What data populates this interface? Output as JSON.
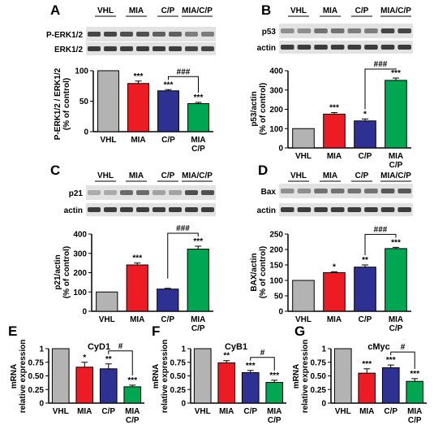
{
  "colors": {
    "vhl": "#b3b3b3",
    "mia": "#ed1c24",
    "cp": "#2e3192",
    "combo": "#00a651",
    "axis": "#000000",
    "blot_bg": "#e2e2e2",
    "band": "#2a2a2a"
  },
  "chart_data": [
    {
      "panel": "A",
      "type": "bar",
      "blots": [
        {
          "label": "P-ERK1/2",
          "intensity": [
            0.85,
            0.85,
            0.8,
            0.8,
            0.7,
            0.7,
            0.55,
            0.55
          ]
        },
        {
          "label": "ERK1/2",
          "intensity": [
            0.9,
            0.9,
            0.9,
            0.9,
            0.9,
            0.9,
            0.85,
            0.85
          ]
        }
      ],
      "lane_groups": [
        "VHL",
        "MIA",
        "C/P",
        "MIA/C/P"
      ],
      "categories": [
        "VHL",
        "MIA",
        "C/P",
        "MIA\nC/P"
      ],
      "values": [
        100,
        79,
        67,
        46
      ],
      "errors": [
        0,
        4,
        2,
        2
      ],
      "stars": [
        "",
        "***",
        "***",
        "***"
      ],
      "bracket": {
        "from": 2,
        "to": 3,
        "label": "###"
      },
      "ylabel": [
        "P-ERK1/2 / ERK1/2",
        "(% of control)"
      ],
      "ylim": [
        0,
        100
      ],
      "yticks": [
        0,
        50,
        100
      ]
    },
    {
      "panel": "B",
      "type": "bar",
      "blots": [
        {
          "label": "p53",
          "intensity": [
            0.45,
            0.45,
            0.6,
            0.6,
            0.55,
            0.55,
            0.85,
            0.85
          ]
        },
        {
          "label": "actin",
          "intensity": [
            0.9,
            0.9,
            0.9,
            0.9,
            0.9,
            0.9,
            0.9,
            0.9
          ]
        }
      ],
      "lane_groups": [
        "VHL",
        "MIA",
        "C/P",
        "MIA/C/P"
      ],
      "categories": [
        "VHL",
        "MIA",
        "C/P",
        "MIA\nC/P"
      ],
      "values": [
        100,
        175,
        140,
        350
      ],
      "errors": [
        0,
        8,
        10,
        12
      ],
      "stars": [
        "",
        "***",
        "*",
        "***"
      ],
      "bracket": {
        "from": 2,
        "to": 3,
        "label": "###"
      },
      "ylabel": [
        "p53/actin",
        "(% of control)"
      ],
      "ylim": [
        0,
        400
      ],
      "yticks": [
        0,
        100,
        200,
        300,
        400
      ]
    },
    {
      "panel": "C",
      "type": "bar",
      "blots": [
        {
          "label": "p21",
          "intensity": [
            0.3,
            0.3,
            0.65,
            0.65,
            0.35,
            0.35,
            0.8,
            0.8
          ]
        },
        {
          "label": "actin",
          "intensity": [
            0.9,
            0.9,
            0.9,
            0.9,
            0.9,
            0.9,
            0.9,
            0.9
          ]
        }
      ],
      "lane_groups": [
        "VHL",
        "MIA",
        "C/P",
        "MIA/C/P"
      ],
      "categories": [
        "VHL",
        "MIA",
        "C/P",
        "MIA\nC/P"
      ],
      "values": [
        100,
        240,
        115,
        322
      ],
      "errors": [
        0,
        10,
        4,
        15
      ],
      "stars": [
        "",
        "***",
        "",
        "***"
      ],
      "bracket": {
        "from": 2,
        "to": 3,
        "label": "###"
      },
      "ylabel": [
        "p21/actin",
        "(% of control)"
      ],
      "ylim": [
        0,
        400
      ],
      "yticks": [
        0,
        100,
        200,
        300,
        400
      ]
    },
    {
      "panel": "D",
      "type": "bar",
      "blots": [
        {
          "label": "Bax",
          "intensity": [
            0.45,
            0.45,
            0.6,
            0.6,
            0.6,
            0.6,
            0.75,
            0.75
          ]
        },
        {
          "label": "actin",
          "intensity": [
            0.9,
            0.9,
            0.9,
            0.9,
            0.9,
            0.9,
            0.9,
            0.9
          ]
        }
      ],
      "lane_groups": [
        "VHL",
        "MIA",
        "C/P",
        "MIA/C/P"
      ],
      "categories": [
        "VHL",
        "MIA",
        "C/P",
        "MIA\nC/P"
      ],
      "values": [
        100,
        125,
        143,
        203
      ],
      "errors": [
        0,
        3,
        7,
        4
      ],
      "stars": [
        "",
        "*",
        "**",
        "***"
      ],
      "bracket": {
        "from": 2,
        "to": 3,
        "label": "###"
      },
      "ylabel": [
        "BAX/actin",
        "(% of control)"
      ],
      "ylim": [
        0,
        250
      ],
      "yticks": [
        0,
        50,
        100,
        150,
        200,
        250
      ]
    },
    {
      "panel": "E",
      "type": "bar",
      "title": "CyD1",
      "categories": [
        "VHL",
        "MIA",
        "C/P",
        "MIA\nC/P"
      ],
      "values": [
        1,
        0.66,
        0.63,
        0.3
      ],
      "errors": [
        0,
        0.09,
        0.09,
        0.03
      ],
      "stars": [
        "",
        "*",
        "**",
        "***"
      ],
      "bracket": {
        "from": 2,
        "to": 3,
        "label": "#"
      },
      "ylabel": [
        "mRNA",
        "relative expression"
      ],
      "ylim": [
        0,
        1
      ],
      "yticks": [
        0,
        0.25,
        0.5,
        0.75,
        1
      ],
      "ytick_labels": [
        "0",
        "0.25",
        "0.50",
        "0.75",
        "1"
      ]
    },
    {
      "panel": "F",
      "type": "bar",
      "title": "CyB1",
      "categories": [
        "VHL",
        "MIA",
        "C/P",
        "MIA\nC/P"
      ],
      "values": [
        1,
        0.74,
        0.56,
        0.38
      ],
      "errors": [
        0,
        0.04,
        0.04,
        0.04
      ],
      "stars": [
        "",
        "**",
        "***",
        "***"
      ],
      "bracket": {
        "from": 2,
        "to": 3,
        "label": "#"
      },
      "ylabel": [
        "mRNA",
        "relative expression"
      ],
      "ylim": [
        0,
        1
      ],
      "yticks": [
        0,
        0.25,
        0.5,
        0.75,
        1
      ],
      "ytick_labels": [
        "0",
        "0.25",
        "0.50",
        "0.75",
        "1"
      ]
    },
    {
      "panel": "G",
      "type": "bar",
      "title": "cMyc",
      "categories": [
        "VHL",
        "MIA",
        "C/P",
        "MIA\nC/P"
      ],
      "values": [
        1,
        0.55,
        0.65,
        0.4
      ],
      "errors": [
        0,
        0.08,
        0.05,
        0.05
      ],
      "stars": [
        "",
        "***",
        "***",
        "***"
      ],
      "bracket": {
        "from": 2,
        "to": 3,
        "label": "#"
      },
      "ylabel": [
        "mRNA",
        "relative expression"
      ],
      "ylim": [
        0,
        1
      ],
      "yticks": [
        0,
        0.25,
        0.5,
        0.75,
        1
      ],
      "ytick_labels": [
        "0",
        "0.25",
        "0.50",
        "0.75",
        "1"
      ]
    }
  ]
}
